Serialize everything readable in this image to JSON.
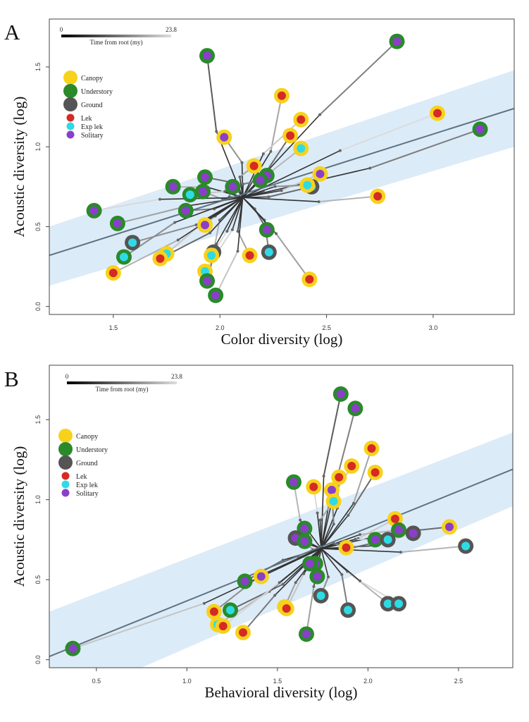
{
  "legend": {
    "strata": [
      {
        "label": "Canopy",
        "color": "#f7d21c"
      },
      {
        "label": "Understory",
        "color": "#2a8a2a"
      },
      {
        "label": "Ground",
        "color": "#555555"
      }
    ],
    "mating": [
      {
        "label": "Lek",
        "color": "#d62a25"
      },
      {
        "label": "Exp lek",
        "color": "#2ddbe6"
      },
      {
        "label": "Solitary",
        "color": "#8a3fc9"
      }
    ]
  },
  "scalebar": {
    "min_label": "0",
    "max_label": "23.8",
    "caption": "Time from root (my)"
  },
  "chart_data": [
    {
      "panel": "A",
      "type": "scatter",
      "xlabel": "Color diversity (log)",
      "ylabel": "Acoustic diversity (log)",
      "xlim": [
        1.2,
        3.38
      ],
      "ylim": [
        -0.05,
        1.8
      ],
      "xticks": [
        "1.5",
        "2.0",
        "2.5",
        "3.0"
      ],
      "yticks": [
        "0.0",
        "0.5",
        "1.0",
        "1.5"
      ],
      "fit": {
        "x": [
          1.2,
          3.38
        ],
        "y": [
          0.32,
          1.24
        ]
      },
      "ci": {
        "x": [
          1.2,
          3.38
        ],
        "upper": [
          0.5,
          1.48
        ],
        "lower": [
          0.13,
          1.0
        ]
      },
      "points": [
        {
          "x": 1.94,
          "y": 1.57,
          "s": "u",
          "m": "s"
        },
        {
          "x": 2.83,
          "y": 1.66,
          "s": "u",
          "m": "s"
        },
        {
          "x": 2.29,
          "y": 1.32,
          "s": "c",
          "m": "l"
        },
        {
          "x": 2.38,
          "y": 1.17,
          "s": "c",
          "m": "l"
        },
        {
          "x": 2.33,
          "y": 1.07,
          "s": "c",
          "m": "l"
        },
        {
          "x": 2.02,
          "y": 1.06,
          "s": "c",
          "m": "s"
        },
        {
          "x": 2.38,
          "y": 0.99,
          "s": "c",
          "m": "e"
        },
        {
          "x": 3.02,
          "y": 1.21,
          "s": "c",
          "m": "l"
        },
        {
          "x": 3.22,
          "y": 1.11,
          "s": "u",
          "m": "s"
        },
        {
          "x": 2.16,
          "y": 0.88,
          "s": "c",
          "m": "l"
        },
        {
          "x": 2.47,
          "y": 0.83,
          "s": "c",
          "m": "s"
        },
        {
          "x": 1.93,
          "y": 0.81,
          "s": "u",
          "m": "s"
        },
        {
          "x": 2.06,
          "y": 0.75,
          "s": "u",
          "m": "s"
        },
        {
          "x": 1.78,
          "y": 0.75,
          "s": "u",
          "m": "s"
        },
        {
          "x": 2.22,
          "y": 0.82,
          "s": "u",
          "m": "s"
        },
        {
          "x": 2.19,
          "y": 0.79,
          "s": "u",
          "m": "s"
        },
        {
          "x": 1.92,
          "y": 0.72,
          "s": "u",
          "m": "s"
        },
        {
          "x": 1.86,
          "y": 0.7,
          "s": "u",
          "m": "e"
        },
        {
          "x": 2.43,
          "y": 0.75,
          "s": "g",
          "m": "e"
        },
        {
          "x": 2.41,
          "y": 0.76,
          "s": "c",
          "m": "e"
        },
        {
          "x": 2.74,
          "y": 0.69,
          "s": "c",
          "m": "l"
        },
        {
          "x": 1.41,
          "y": 0.6,
          "s": "u",
          "m": "s"
        },
        {
          "x": 1.84,
          "y": 0.6,
          "s": "u",
          "m": "s"
        },
        {
          "x": 1.52,
          "y": 0.52,
          "s": "u",
          "m": "s"
        },
        {
          "x": 1.93,
          "y": 0.51,
          "s": "c",
          "m": "s"
        },
        {
          "x": 2.22,
          "y": 0.48,
          "s": "u",
          "m": "s"
        },
        {
          "x": 1.59,
          "y": 0.4,
          "s": "g",
          "m": "e"
        },
        {
          "x": 1.97,
          "y": 0.34,
          "s": "g",
          "m": "e"
        },
        {
          "x": 1.96,
          "y": 0.32,
          "s": "c",
          "m": "e"
        },
        {
          "x": 2.23,
          "y": 0.34,
          "s": "g",
          "m": "e"
        },
        {
          "x": 2.14,
          "y": 0.32,
          "s": "c",
          "m": "l"
        },
        {
          "x": 1.75,
          "y": 0.33,
          "s": "c",
          "m": "e"
        },
        {
          "x": 1.72,
          "y": 0.3,
          "s": "c",
          "m": "l"
        },
        {
          "x": 1.55,
          "y": 0.31,
          "s": "u",
          "m": "e"
        },
        {
          "x": 1.5,
          "y": 0.21,
          "s": "c",
          "m": "l"
        },
        {
          "x": 1.93,
          "y": 0.22,
          "s": "c",
          "m": "e"
        },
        {
          "x": 1.94,
          "y": 0.16,
          "s": "u",
          "m": "s"
        },
        {
          "x": 2.42,
          "y": 0.17,
          "s": "c",
          "m": "l"
        },
        {
          "x": 1.98,
          "y": 0.07,
          "s": "u",
          "m": "s"
        }
      ]
    },
    {
      "panel": "B",
      "type": "scatter",
      "xlabel": "Behavioral diversity (log)",
      "ylabel": "Acoustic diversity (log)",
      "xlim": [
        0.24,
        2.8
      ],
      "ylim": [
        -0.05,
        1.84
      ],
      "xticks": [
        "0.5",
        "1.0",
        "1.5",
        "2.0",
        "2.5"
      ],
      "yticks": [
        "0.0",
        "0.5",
        "1.0",
        "1.5"
      ],
      "fit": {
        "x": [
          0.24,
          2.8
        ],
        "y": [
          0.02,
          1.19
        ]
      },
      "ci": {
        "x": [
          0.24,
          2.8
        ],
        "upper": [
          0.3,
          1.42
        ],
        "lower": [
          -0.3,
          0.96
        ]
      },
      "points": [
        {
          "x": 1.85,
          "y": 1.66,
          "s": "u",
          "m": "s"
        },
        {
          "x": 1.93,
          "y": 1.57,
          "s": "u",
          "m": "s"
        },
        {
          "x": 2.02,
          "y": 1.32,
          "s": "c",
          "m": "l"
        },
        {
          "x": 1.91,
          "y": 1.21,
          "s": "c",
          "m": "l"
        },
        {
          "x": 2.04,
          "y": 1.17,
          "s": "c",
          "m": "l"
        },
        {
          "x": 1.84,
          "y": 1.14,
          "s": "c",
          "m": "l"
        },
        {
          "x": 1.59,
          "y": 1.11,
          "s": "u",
          "m": "s"
        },
        {
          "x": 1.7,
          "y": 1.08,
          "s": "c",
          "m": "l"
        },
        {
          "x": 1.8,
          "y": 1.06,
          "s": "c",
          "m": "s"
        },
        {
          "x": 1.81,
          "y": 0.99,
          "s": "c",
          "m": "e"
        },
        {
          "x": 2.15,
          "y": 0.88,
          "s": "c",
          "m": "l"
        },
        {
          "x": 2.45,
          "y": 0.83,
          "s": "c",
          "m": "s"
        },
        {
          "x": 1.65,
          "y": 0.82,
          "s": "u",
          "m": "s"
        },
        {
          "x": 2.17,
          "y": 0.81,
          "s": "u",
          "m": "s"
        },
        {
          "x": 2.25,
          "y": 0.79,
          "s": "g",
          "m": "s"
        },
        {
          "x": 1.6,
          "y": 0.76,
          "s": "g",
          "m": "s"
        },
        {
          "x": 1.65,
          "y": 0.74,
          "s": "u",
          "m": "s"
        },
        {
          "x": 2.04,
          "y": 0.75,
          "s": "u",
          "m": "s"
        },
        {
          "x": 2.11,
          "y": 0.75,
          "s": "g",
          "m": "e"
        },
        {
          "x": 1.88,
          "y": 0.7,
          "s": "c",
          "m": "l"
        },
        {
          "x": 2.54,
          "y": 0.71,
          "s": "g",
          "m": "e"
        },
        {
          "x": 1.71,
          "y": 0.6,
          "s": "u",
          "m": "s"
        },
        {
          "x": 1.68,
          "y": 0.6,
          "s": "u",
          "m": "s"
        },
        {
          "x": 1.41,
          "y": 0.52,
          "s": "c",
          "m": "s"
        },
        {
          "x": 1.72,
          "y": 0.52,
          "s": "u",
          "m": "s"
        },
        {
          "x": 1.32,
          "y": 0.49,
          "s": "u",
          "m": "s"
        },
        {
          "x": 1.74,
          "y": 0.4,
          "s": "g",
          "m": "e"
        },
        {
          "x": 2.11,
          "y": 0.35,
          "s": "g",
          "m": "e"
        },
        {
          "x": 2.17,
          "y": 0.35,
          "s": "g",
          "m": "e"
        },
        {
          "x": 1.89,
          "y": 0.31,
          "s": "g",
          "m": "e"
        },
        {
          "x": 1.54,
          "y": 0.33,
          "s": "c",
          "m": "e"
        },
        {
          "x": 1.55,
          "y": 0.32,
          "s": "c",
          "m": "l"
        },
        {
          "x": 1.24,
          "y": 0.31,
          "s": "u",
          "m": "e"
        },
        {
          "x": 1.15,
          "y": 0.3,
          "s": "c",
          "m": "l"
        },
        {
          "x": 1.17,
          "y": 0.22,
          "s": "c",
          "m": "e"
        },
        {
          "x": 1.2,
          "y": 0.21,
          "s": "c",
          "m": "l"
        },
        {
          "x": 1.31,
          "y": 0.17,
          "s": "c",
          "m": "l"
        },
        {
          "x": 1.66,
          "y": 0.16,
          "s": "u",
          "m": "s"
        },
        {
          "x": 0.37,
          "y": 0.07,
          "s": "u",
          "m": "s"
        }
      ]
    }
  ]
}
